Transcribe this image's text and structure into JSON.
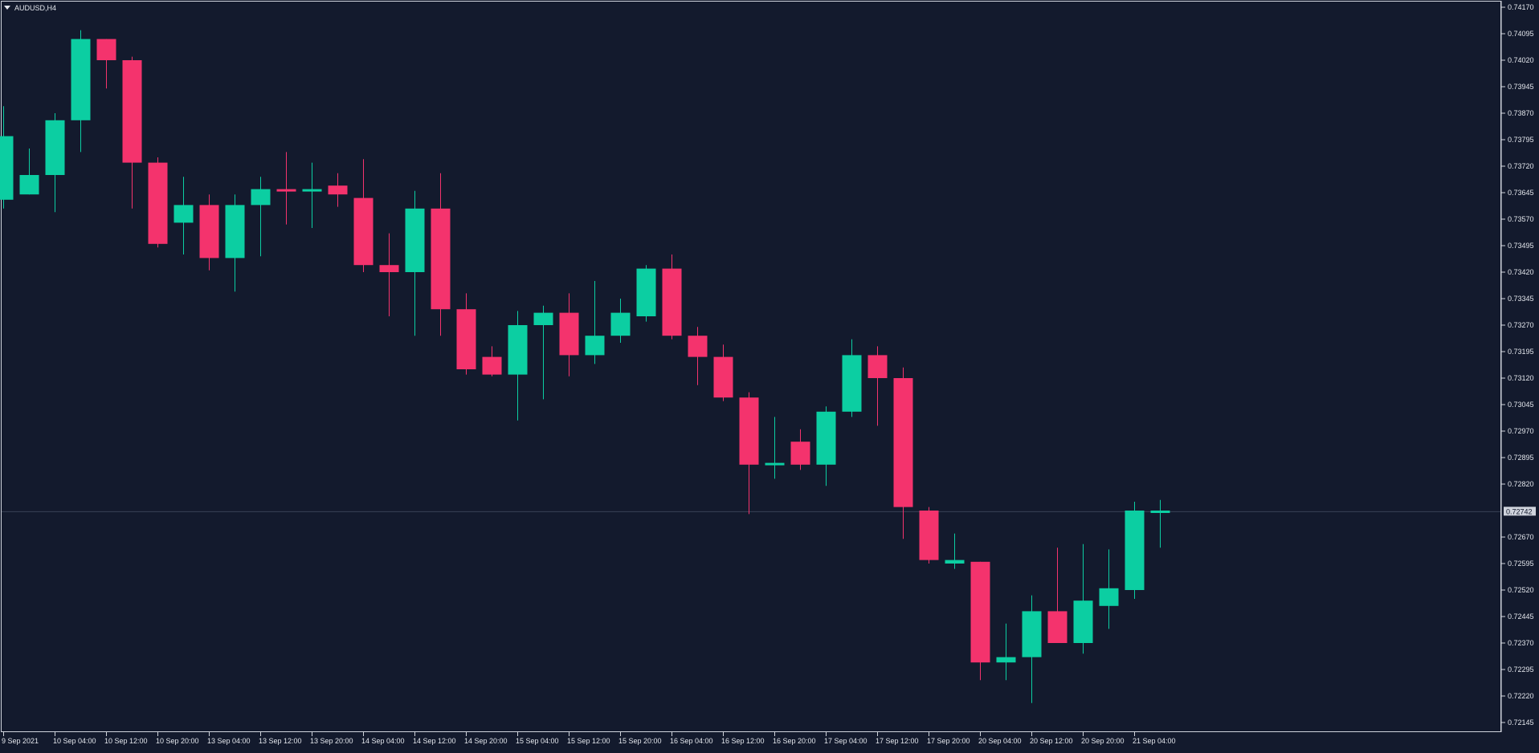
{
  "symbol_label": "AUDUSD,H4",
  "current_price_label": "0.72742",
  "colors": {
    "background": "#131a2d",
    "frame": "#cfd3dc",
    "text": "#e3e6ec",
    "bull": "#0ccea2",
    "bear": "#f4336d",
    "price_line": "#3a4256",
    "price_box_bg": "#cfd3dc",
    "price_box_text": "#131a2d"
  },
  "chart_data": {
    "type": "candlestick",
    "title": "AUDUSD,H4",
    "ylim": [
      0.72145,
      0.7417
    ],
    "y_ticks": [
      "0.74170",
      "0.74095",
      "0.74020",
      "0.73945",
      "0.73870",
      "0.73795",
      "0.73720",
      "0.73645",
      "0.73570",
      "0.73495",
      "0.73420",
      "0.73345",
      "0.73270",
      "0.73195",
      "0.73120",
      "0.73045",
      "0.72970",
      "0.72895",
      "0.72820",
      "0.72670",
      "0.72595",
      "0.72520",
      "0.72445",
      "0.72370",
      "0.72295",
      "0.72220",
      "0.72145"
    ],
    "x_ticks": [
      {
        "label": "9 Sep 2021",
        "bar": 0
      },
      {
        "label": "10 Sep 04:00",
        "bar": 2
      },
      {
        "label": "10 Sep 12:00",
        "bar": 4
      },
      {
        "label": "10 Sep 20:00",
        "bar": 6
      },
      {
        "label": "13 Sep 04:00",
        "bar": 8
      },
      {
        "label": "13 Sep 12:00",
        "bar": 10
      },
      {
        "label": "13 Sep 20:00",
        "bar": 12
      },
      {
        "label": "14 Sep 04:00",
        "bar": 14
      },
      {
        "label": "14 Sep 12:00",
        "bar": 16
      },
      {
        "label": "14 Sep 20:00",
        "bar": 18
      },
      {
        "label": "15 Sep 04:00",
        "bar": 20
      },
      {
        "label": "15 Sep 12:00",
        "bar": 22
      },
      {
        "label": "15 Sep 20:00",
        "bar": 24
      },
      {
        "label": "16 Sep 04:00",
        "bar": 26
      },
      {
        "label": "16 Sep 12:00",
        "bar": 28
      },
      {
        "label": "16 Sep 20:00",
        "bar": 30
      },
      {
        "label": "17 Sep 04:00",
        "bar": 32
      },
      {
        "label": "17 Sep 12:00",
        "bar": 34
      },
      {
        "label": "17 Sep 20:00",
        "bar": 36
      },
      {
        "label": "20 Sep 04:00",
        "bar": 38
      },
      {
        "label": "20 Sep 12:00",
        "bar": 40
      },
      {
        "label": "20 Sep 20:00",
        "bar": 42
      },
      {
        "label": "21 Sep 04:00",
        "bar": 44
      }
    ],
    "current_price": 0.72742,
    "candles": [
      {
        "o": 0.73625,
        "h": 0.7389,
        "l": 0.736,
        "c": 0.73805
      },
      {
        "o": 0.7364,
        "h": 0.7377,
        "l": 0.7364,
        "c": 0.73695
      },
      {
        "o": 0.73695,
        "h": 0.7387,
        "l": 0.7359,
        "c": 0.7385
      },
      {
        "o": 0.7385,
        "h": 0.74105,
        "l": 0.7376,
        "c": 0.7408
      },
      {
        "o": 0.7408,
        "h": 0.7408,
        "l": 0.7394,
        "c": 0.7402
      },
      {
        "o": 0.7402,
        "h": 0.7403,
        "l": 0.736,
        "c": 0.7373
      },
      {
        "o": 0.7373,
        "h": 0.73745,
        "l": 0.7349,
        "c": 0.735
      },
      {
        "o": 0.7356,
        "h": 0.7369,
        "l": 0.7347,
        "c": 0.7361
      },
      {
        "o": 0.7361,
        "h": 0.7364,
        "l": 0.73425,
        "c": 0.7346
      },
      {
        "o": 0.7346,
        "h": 0.7364,
        "l": 0.73365,
        "c": 0.7361
      },
      {
        "o": 0.7361,
        "h": 0.7369,
        "l": 0.73465,
        "c": 0.73655
      },
      {
        "o": 0.73655,
        "h": 0.7376,
        "l": 0.73555,
        "c": 0.7365
      },
      {
        "o": 0.7365,
        "h": 0.7373,
        "l": 0.73545,
        "c": 0.73655
      },
      {
        "o": 0.73665,
        "h": 0.737,
        "l": 0.73605,
        "c": 0.7364
      },
      {
        "o": 0.7363,
        "h": 0.7374,
        "l": 0.7342,
        "c": 0.7344
      },
      {
        "o": 0.7344,
        "h": 0.7353,
        "l": 0.73295,
        "c": 0.7342
      },
      {
        "o": 0.7342,
        "h": 0.7365,
        "l": 0.7324,
        "c": 0.736
      },
      {
        "o": 0.736,
        "h": 0.737,
        "l": 0.7324,
        "c": 0.73315
      },
      {
        "o": 0.73315,
        "h": 0.7336,
        "l": 0.7313,
        "c": 0.73145
      },
      {
        "o": 0.7318,
        "h": 0.7321,
        "l": 0.73125,
        "c": 0.7313
      },
      {
        "o": 0.7313,
        "h": 0.7331,
        "l": 0.73,
        "c": 0.7327
      },
      {
        "o": 0.7327,
        "h": 0.73325,
        "l": 0.7306,
        "c": 0.73305
      },
      {
        "o": 0.73305,
        "h": 0.7336,
        "l": 0.73125,
        "c": 0.73185
      },
      {
        "o": 0.73185,
        "h": 0.73395,
        "l": 0.7316,
        "c": 0.7324
      },
      {
        "o": 0.7324,
        "h": 0.73345,
        "l": 0.7322,
        "c": 0.73305
      },
      {
        "o": 0.73295,
        "h": 0.7344,
        "l": 0.7328,
        "c": 0.7343
      },
      {
        "o": 0.7343,
        "h": 0.7347,
        "l": 0.7323,
        "c": 0.7324
      },
      {
        "o": 0.7324,
        "h": 0.73265,
        "l": 0.731,
        "c": 0.7318
      },
      {
        "o": 0.7318,
        "h": 0.73215,
        "l": 0.73055,
        "c": 0.73065
      },
      {
        "o": 0.73065,
        "h": 0.7308,
        "l": 0.72735,
        "c": 0.72875
      },
      {
        "o": 0.72875,
        "h": 0.7301,
        "l": 0.72835,
        "c": 0.7288
      },
      {
        "o": 0.7294,
        "h": 0.72975,
        "l": 0.7286,
        "c": 0.72875
      },
      {
        "o": 0.72875,
        "h": 0.7304,
        "l": 0.72815,
        "c": 0.73025
      },
      {
        "o": 0.73025,
        "h": 0.7323,
        "l": 0.7301,
        "c": 0.73185
      },
      {
        "o": 0.73185,
        "h": 0.7321,
        "l": 0.72985,
        "c": 0.7312
      },
      {
        "o": 0.7312,
        "h": 0.7315,
        "l": 0.72665,
        "c": 0.72755
      },
      {
        "o": 0.72745,
        "h": 0.72755,
        "l": 0.72595,
        "c": 0.72605
      },
      {
        "o": 0.72595,
        "h": 0.7268,
        "l": 0.7258,
        "c": 0.72605
      },
      {
        "o": 0.726,
        "h": 0.726,
        "l": 0.72265,
        "c": 0.72315
      },
      {
        "o": 0.72315,
        "h": 0.72425,
        "l": 0.72265,
        "c": 0.7233
      },
      {
        "o": 0.7233,
        "h": 0.72505,
        "l": 0.722,
        "c": 0.7246
      },
      {
        "o": 0.7246,
        "h": 0.7264,
        "l": 0.7237,
        "c": 0.7237
      },
      {
        "o": 0.7237,
        "h": 0.7265,
        "l": 0.7234,
        "c": 0.7249
      },
      {
        "o": 0.72475,
        "h": 0.72635,
        "l": 0.7241,
        "c": 0.72525
      },
      {
        "o": 0.7252,
        "h": 0.7277,
        "l": 0.72495,
        "c": 0.72745
      },
      {
        "o": 0.7274,
        "h": 0.72775,
        "l": 0.7264,
        "c": 0.72745
      }
    ]
  }
}
